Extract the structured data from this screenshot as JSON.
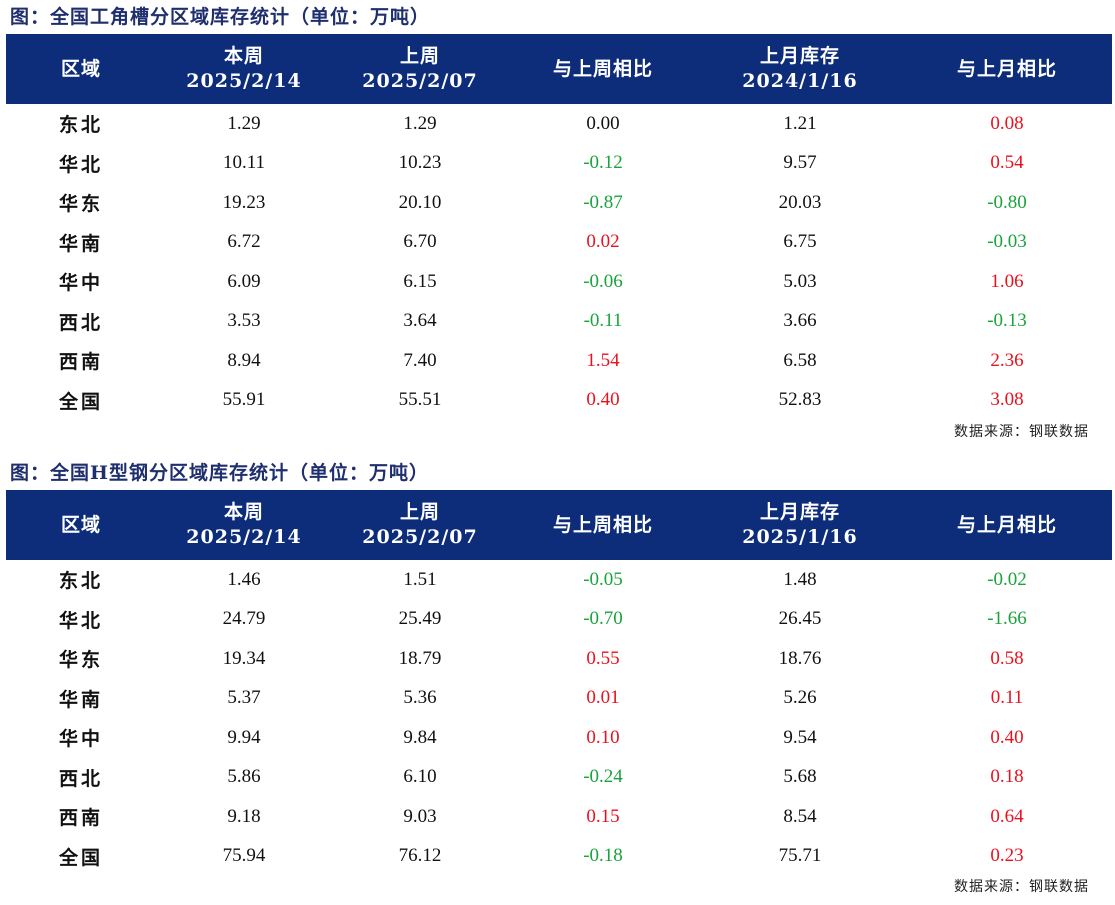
{
  "tables": [
    {
      "title": "图：全国工角槽分区域库存统计（单位：万吨）",
      "headers": [
        {
          "line1": "区域",
          "line2": ""
        },
        {
          "line1": "本周",
          "line2": "2025/2/14"
        },
        {
          "line1": "上周",
          "line2": "2025/2/07"
        },
        {
          "line1": "与上周相比",
          "line2": ""
        },
        {
          "line1": "上月库存",
          "line2": "2024/1/16"
        },
        {
          "line1": "与上月相比",
          "line2": ""
        }
      ],
      "rows": [
        {
          "region": "东北",
          "this_week": "1.29",
          "last_week": "1.29",
          "wow": "0.00",
          "last_month": "1.21",
          "mom": "0.08"
        },
        {
          "region": "华北",
          "this_week": "10.11",
          "last_week": "10.23",
          "wow": "-0.12",
          "last_month": "9.57",
          "mom": "0.54"
        },
        {
          "region": "华东",
          "this_week": "19.23",
          "last_week": "20.10",
          "wow": "-0.87",
          "last_month": "20.03",
          "mom": "-0.80"
        },
        {
          "region": "华南",
          "this_week": "6.72",
          "last_week": "6.70",
          "wow": "0.02",
          "last_month": "6.75",
          "mom": "-0.03"
        },
        {
          "region": "华中",
          "this_week": "6.09",
          "last_week": "6.15",
          "wow": "-0.06",
          "last_month": "5.03",
          "mom": "1.06"
        },
        {
          "region": "西北",
          "this_week": "3.53",
          "last_week": "3.64",
          "wow": "-0.11",
          "last_month": "3.66",
          "mom": "-0.13"
        },
        {
          "region": "西南",
          "this_week": "8.94",
          "last_week": "7.40",
          "wow": "1.54",
          "last_month": "6.58",
          "mom": "2.36"
        },
        {
          "region": "全国",
          "this_week": "55.91",
          "last_week": "55.51",
          "wow": "0.40",
          "last_month": "52.83",
          "mom": "3.08"
        }
      ],
      "source": "数据来源：钢联数据"
    },
    {
      "title": "图：全国H型钢分区域库存统计（单位：万吨）",
      "headers": [
        {
          "line1": "区域",
          "line2": ""
        },
        {
          "line1": "本周",
          "line2": "2025/2/14"
        },
        {
          "line1": "上周",
          "line2": "2025/2/07"
        },
        {
          "line1": "与上周相比",
          "line2": ""
        },
        {
          "line1": "上月库存",
          "line2": "2025/1/16"
        },
        {
          "line1": "与上月相比",
          "line2": ""
        }
      ],
      "rows": [
        {
          "region": "东北",
          "this_week": "1.46",
          "last_week": "1.51",
          "wow": "-0.05",
          "last_month": "1.48",
          "mom": "-0.02"
        },
        {
          "region": "华北",
          "this_week": "24.79",
          "last_week": "25.49",
          "wow": "-0.70",
          "last_month": "26.45",
          "mom": "-1.66"
        },
        {
          "region": "华东",
          "this_week": "19.34",
          "last_week": "18.79",
          "wow": "0.55",
          "last_month": "18.76",
          "mom": "0.58"
        },
        {
          "region": "华南",
          "this_week": "5.37",
          "last_week": "5.36",
          "wow": "0.01",
          "last_month": "5.26",
          "mom": "0.11"
        },
        {
          "region": "华中",
          "this_week": "9.94",
          "last_week": "9.84",
          "wow": "0.10",
          "last_month": "9.54",
          "mom": "0.40"
        },
        {
          "region": "西北",
          "this_week": "5.86",
          "last_week": "6.10",
          "wow": "-0.24",
          "last_month": "5.68",
          "mom": "0.18"
        },
        {
          "region": "西南",
          "this_week": "9.18",
          "last_week": "9.03",
          "wow": "0.15",
          "last_month": "8.54",
          "mom": "0.64"
        },
        {
          "region": "全国",
          "this_week": "75.94",
          "last_week": "76.12",
          "wow": "-0.18",
          "last_month": "75.71",
          "mom": "0.23"
        }
      ],
      "source": "数据来源：钢联数据"
    }
  ],
  "colors": {
    "header_bg": "#0d2d7a",
    "title": "#1f2f6e",
    "positive": "#e8121e",
    "negative": "#1aa33c"
  }
}
